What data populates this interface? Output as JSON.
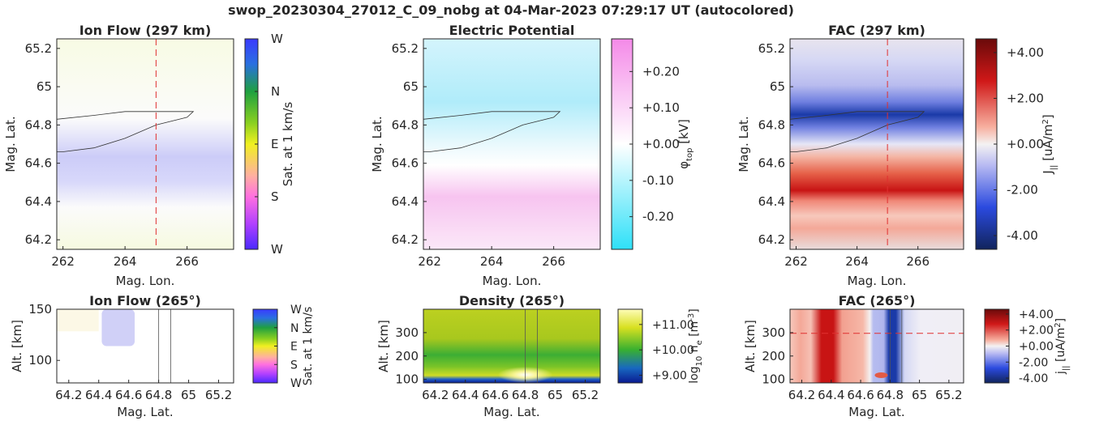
{
  "figure": {
    "suptitle": "swop_20230304_27012_C_09_nobg at 04-Mar-2023 07:29:17 UT (autocolored)"
  },
  "chart_data": [
    {
      "id": "ion_flow_top",
      "type": "heatmap",
      "title": "Ion Flow (297 km)",
      "xlabel": "Mag. Lon.",
      "ylabel": "Mag. Lat.",
      "xlim": [
        261.8,
        267.5
      ],
      "ylim": [
        64.15,
        65.25
      ],
      "xticks": [
        "262",
        "264",
        "266"
      ],
      "yticks": [
        "64.2",
        "64.4",
        "64.6",
        "64.8",
        "65",
        "65.2"
      ],
      "colorbar": {
        "label": "Sat. at 1 km/s",
        "ticks": [
          "W",
          "N",
          "E",
          "S",
          "W"
        ]
      },
      "annotations": {
        "dashed_vertical_lon": 265,
        "dashed_color": "#e03030"
      }
    },
    {
      "id": "potential_top",
      "type": "heatmap",
      "title": "Electric Potential",
      "xlabel": "Mag. Lon.",
      "ylabel": "Mag. Lat.",
      "xlim": [
        261.8,
        267.5
      ],
      "ylim": [
        64.15,
        65.25
      ],
      "xticks": [
        "262",
        "264",
        "266"
      ],
      "yticks": [
        "64.2",
        "64.4",
        "64.6",
        "64.8",
        "65",
        "65.2"
      ],
      "colorbar": {
        "label": "φ",
        "label_sub": "top",
        "label_unit": " [kV]",
        "ticks": [
          "+0.20",
          "+0.10",
          "+0.00",
          "-0.10",
          "-0.20"
        ],
        "range": [
          -0.29,
          0.29
        ]
      }
    },
    {
      "id": "fac_top",
      "type": "heatmap",
      "title": "FAC (297 km)",
      "xlabel": "Mag. Lon.",
      "ylabel": "Mag. Lat.",
      "xlim": [
        261.8,
        267.5
      ],
      "ylim": [
        64.15,
        65.25
      ],
      "xticks": [
        "262",
        "264",
        "266"
      ],
      "yticks": [
        "64.2",
        "64.4",
        "64.6",
        "64.8",
        "65",
        "65.2"
      ],
      "colorbar": {
        "label": "J",
        "label_sub": "||",
        "label_unit": " [uA/m",
        "label_sup": "2",
        "label_end": "]",
        "ticks": [
          "+4.00",
          "+2.00",
          "+0.00",
          "-2.00",
          "-4.00"
        ],
        "range": [
          -4.6,
          4.6
        ]
      },
      "annotations": {
        "dashed_vertical_lon": 265,
        "dashed_color": "#e03030"
      }
    },
    {
      "id": "ion_flow_bottom",
      "type": "heatmap",
      "title": "Ion Flow (265°)",
      "xlabel": "Mag. Lat.",
      "ylabel": "Alt. [km]",
      "xlim": [
        64.12,
        65.3
      ],
      "ylim": [
        78,
        150
      ],
      "xticks": [
        "64.2",
        "64.4",
        "64.6",
        "64.8",
        "65",
        "65.2"
      ],
      "yticks": [
        "100",
        "150"
      ],
      "colorbar": {
        "label": "Sat. at 1 km/s",
        "ticks": [
          "W",
          "N",
          "E",
          "S",
          "W"
        ]
      },
      "annotations": {
        "vertical_lines_lat": [
          64.8,
          64.88
        ]
      }
    },
    {
      "id": "density_bottom",
      "type": "heatmap",
      "title": "Density (265°)",
      "xlabel": "Mag. Lat.",
      "ylabel": "Alt. [km]",
      "xlim": [
        64.12,
        65.3
      ],
      "ylim": [
        85,
        400
      ],
      "xticks": [
        "64.2",
        "64.4",
        "64.6",
        "64.8",
        "65",
        "65.2"
      ],
      "yticks": [
        "100",
        "200",
        "300"
      ],
      "colorbar": {
        "label": "log",
        "label_sub": "10",
        "label_unit": " n",
        "label_sub2": "e",
        "label_tail": " [m",
        "label_sup": "-3",
        "label_end": "]",
        "ticks": [
          "+11.00",
          "+10.00",
          "+9.00"
        ],
        "range": [
          8.7,
          11.6
        ]
      },
      "annotations": {
        "vertical_lines_lat": [
          64.8,
          64.88
        ]
      }
    },
    {
      "id": "fac_bottom",
      "type": "heatmap",
      "title": "FAC (265°)",
      "xlabel": "Mag. Lat.",
      "ylabel": "Alt. [km]",
      "xlim": [
        64.12,
        65.3
      ],
      "ylim": [
        85,
        400
      ],
      "xticks": [
        "64.2",
        "64.4",
        "64.6",
        "64.8",
        "65",
        "65.2"
      ],
      "yticks": [
        "100",
        "200",
        "300"
      ],
      "colorbar": {
        "label": "j",
        "label_sub": "||",
        "label_unit": " [uA/m",
        "label_sup": "2",
        "label_end": "]",
        "ticks": [
          "+4.00",
          "+2.00",
          "+0.00",
          "-2.00",
          "-4.00"
        ],
        "range": [
          -4.6,
          4.6
        ]
      },
      "annotations": {
        "dashed_horizontal_alt": 297,
        "dashed_color": "#e03030",
        "vertical_lines_lat": [
          64.8,
          64.88
        ]
      }
    }
  ]
}
